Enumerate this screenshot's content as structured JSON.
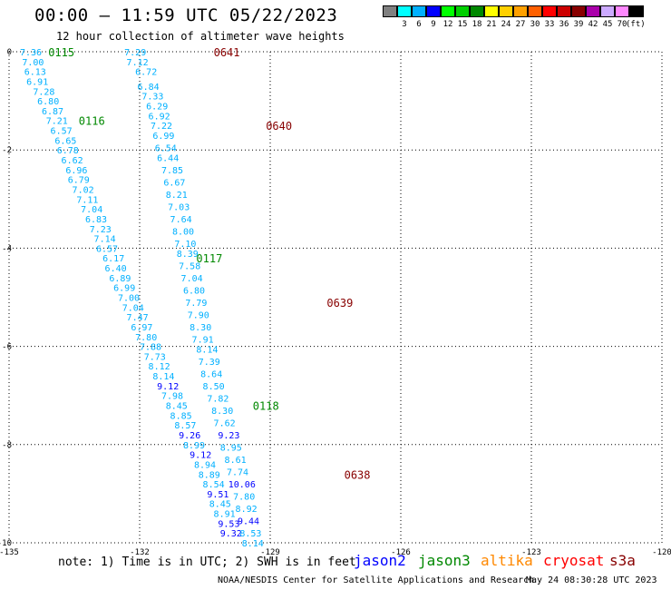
{
  "header": {
    "title": "00:00 – 11:59 UTC 05/22/2023",
    "subtitle": "12 hour collection of altimeter wave heights"
  },
  "colorbar": {
    "colors": [
      "#808080",
      "#00ffff",
      "#00b0ff",
      "#0000ff",
      "#00ff00",
      "#00d000",
      "#008800",
      "#ffff00",
      "#ffd000",
      "#ffa000",
      "#ff6000",
      "#ff0000",
      "#cc0000",
      "#880000",
      "#aa00aa",
      "#ccaaff",
      "#ff88ff",
      "#000000"
    ],
    "labels": [
      "3",
      "6",
      "9",
      "12",
      "15",
      "18",
      "21",
      "24",
      "27",
      "30",
      "33",
      "36",
      "39",
      "42",
      "45",
      "70"
    ],
    "unit": "(ft)"
  },
  "chart_data": {
    "type": "map",
    "x_ticks": [
      "-135",
      "-132",
      "-129",
      "-126",
      "-123",
      "-120"
    ],
    "y_ticks": [
      "0",
      "-2",
      "-4",
      "-6",
      "-8",
      "-10"
    ],
    "xlim": [
      -135,
      -120
    ],
    "ylim": [
      -10,
      0
    ],
    "grid": true,
    "tracks": [
      {
        "id": "0115",
        "lon": -134.1,
        "lat": 0.0
      },
      {
        "id": "0116",
        "lon": -133.4,
        "lat": -1.4
      },
      {
        "id": "0117",
        "lon": -130.7,
        "lat": -4.2
      },
      {
        "id": "0118",
        "lon": -129.4,
        "lat": -7.2
      },
      {
        "id": "0641",
        "lon": -130.3,
        "lat": 0.0
      },
      {
        "id": "0640",
        "lon": -129.1,
        "lat": -1.5
      },
      {
        "id": "0639",
        "lon": -127.7,
        "lat": -5.1
      },
      {
        "id": "0638",
        "lon": -127.3,
        "lat": -8.6
      }
    ],
    "track_colors": {
      "0115": "#008800",
      "0116": "#008800",
      "0117": "#008800",
      "0118": "#008800",
      "0641": "#880000",
      "0640": "#880000",
      "0639": "#880000",
      "0638": "#880000"
    },
    "observations": [
      {
        "lon": -134.5,
        "lat": 0.0,
        "swh": "7.36"
      },
      {
        "lon": -134.45,
        "lat": -0.2,
        "swh": "7.00"
      },
      {
        "lon": -134.4,
        "lat": -0.4,
        "swh": "6.13"
      },
      {
        "lon": -134.35,
        "lat": -0.6,
        "swh": "6.91"
      },
      {
        "lon": -134.2,
        "lat": -0.8,
        "swh": "7.28"
      },
      {
        "lon": -134.1,
        "lat": -1.0,
        "swh": "6.80"
      },
      {
        "lon": -134.0,
        "lat": -1.2,
        "swh": "6.87"
      },
      {
        "lon": -133.9,
        "lat": -1.4,
        "swh": "7.21"
      },
      {
        "lon": -133.8,
        "lat": -1.6,
        "swh": "6.57"
      },
      {
        "lon": -133.7,
        "lat": -1.8,
        "swh": "6.65"
      },
      {
        "lon": -133.65,
        "lat": -2.0,
        "swh": "6.78"
      },
      {
        "lon": -133.55,
        "lat": -2.2,
        "swh": "6.62"
      },
      {
        "lon": -133.45,
        "lat": -2.4,
        "swh": "6.96"
      },
      {
        "lon": -133.4,
        "lat": -2.6,
        "swh": "6.79"
      },
      {
        "lon": -133.3,
        "lat": -2.8,
        "swh": "7.02"
      },
      {
        "lon": -133.2,
        "lat": -3.0,
        "swh": "7.11"
      },
      {
        "lon": -133.1,
        "lat": -3.2,
        "swh": "7.04"
      },
      {
        "lon": -133.0,
        "lat": -3.4,
        "swh": "6.83"
      },
      {
        "lon": -132.9,
        "lat": -3.6,
        "swh": "7.23"
      },
      {
        "lon": -132.8,
        "lat": -3.8,
        "swh": "7.14"
      },
      {
        "lon": -132.75,
        "lat": -4.0,
        "swh": "6.57"
      },
      {
        "lon": -132.6,
        "lat": -4.2,
        "swh": "6.17"
      },
      {
        "lon": -132.55,
        "lat": -4.4,
        "swh": "6.40"
      },
      {
        "lon": -132.45,
        "lat": -4.6,
        "swh": "6.89"
      },
      {
        "lon": -132.35,
        "lat": -4.8,
        "swh": "6.99"
      },
      {
        "lon": -132.25,
        "lat": -5.0,
        "swh": "7.00"
      },
      {
        "lon": -132.15,
        "lat": -5.2,
        "swh": "7.04"
      },
      {
        "lon": -132.05,
        "lat": -5.4,
        "swh": "7.47"
      },
      {
        "lon": -131.95,
        "lat": -5.6,
        "swh": "6.97"
      },
      {
        "lon": -131.85,
        "lat": -5.8,
        "swh": "7.80"
      },
      {
        "lon": -131.75,
        "lat": -6.0,
        "swh": "7.88"
      },
      {
        "lon": -131.65,
        "lat": -6.2,
        "swh": "7.73"
      },
      {
        "lon": -131.55,
        "lat": -6.4,
        "swh": "8.12"
      },
      {
        "lon": -131.45,
        "lat": -6.6,
        "swh": "8.14"
      },
      {
        "lon": -131.35,
        "lat": -6.8,
        "swh": "9.12"
      },
      {
        "lon": -131.25,
        "lat": -7.0,
        "swh": "7.98"
      },
      {
        "lon": -131.15,
        "lat": -7.2,
        "swh": "8.45"
      },
      {
        "lon": -131.05,
        "lat": -7.4,
        "swh": "8.85"
      },
      {
        "lon": -130.95,
        "lat": -7.6,
        "swh": "8.57"
      },
      {
        "lon": -130.85,
        "lat": -7.8,
        "swh": "9.26"
      },
      {
        "lon": -130.75,
        "lat": -8.0,
        "swh": "8.99"
      },
      {
        "lon": -130.6,
        "lat": -8.2,
        "swh": "9.12"
      },
      {
        "lon": -130.5,
        "lat": -8.4,
        "swh": "8.94"
      },
      {
        "lon": -130.4,
        "lat": -8.6,
        "swh": "8.89"
      },
      {
        "lon": -130.3,
        "lat": -8.8,
        "swh": "8.54"
      },
      {
        "lon": -130.2,
        "lat": -9.0,
        "swh": "9.51"
      },
      {
        "lon": -130.15,
        "lat": -9.2,
        "swh": "8.45"
      },
      {
        "lon": -130.05,
        "lat": -9.4,
        "swh": "8.91"
      },
      {
        "lon": -129.95,
        "lat": -9.6,
        "swh": "9.53"
      },
      {
        "lon": -129.9,
        "lat": -9.8,
        "swh": "9.32"
      },
      {
        "lon": -132.1,
        "lat": 0.0,
        "swh": "7.29"
      },
      {
        "lon": -132.05,
        "lat": -0.2,
        "swh": "7.12"
      },
      {
        "lon": -131.85,
        "lat": -0.4,
        "swh": "6.72"
      },
      {
        "lon": -131.8,
        "lat": -0.7,
        "swh": "6.84"
      },
      {
        "lon": -131.7,
        "lat": -0.9,
        "swh": "7.33"
      },
      {
        "lon": -131.6,
        "lat": -1.1,
        "swh": "6.29"
      },
      {
        "lon": -131.55,
        "lat": -1.3,
        "swh": "6.92"
      },
      {
        "lon": -131.5,
        "lat": -1.5,
        "swh": "7.22"
      },
      {
        "lon": -131.45,
        "lat": -1.7,
        "swh": "6.99"
      },
      {
        "lon": -131.4,
        "lat": -1.95,
        "swh": "6.54"
      },
      {
        "lon": -131.35,
        "lat": -2.15,
        "swh": "6.44"
      },
      {
        "lon": -131.25,
        "lat": -2.4,
        "swh": "7.85"
      },
      {
        "lon": -131.2,
        "lat": -2.65,
        "swh": "6.67"
      },
      {
        "lon": -131.15,
        "lat": -2.9,
        "swh": "8.21"
      },
      {
        "lon": -131.1,
        "lat": -3.15,
        "swh": "7.03"
      },
      {
        "lon": -131.05,
        "lat": -3.4,
        "swh": "7.64"
      },
      {
        "lon": -131.0,
        "lat": -3.65,
        "swh": "8.00"
      },
      {
        "lon": -130.95,
        "lat": -3.9,
        "swh": "7.10"
      },
      {
        "lon": -130.9,
        "lat": -4.1,
        "swh": "8.39"
      },
      {
        "lon": -130.85,
        "lat": -4.35,
        "swh": "7.58"
      },
      {
        "lon": -130.8,
        "lat": -4.6,
        "swh": "7.04"
      },
      {
        "lon": -130.75,
        "lat": -4.85,
        "swh": "6.80"
      },
      {
        "lon": -130.7,
        "lat": -5.1,
        "swh": "7.79"
      },
      {
        "lon": -130.65,
        "lat": -5.35,
        "swh": "7.90"
      },
      {
        "lon": -130.6,
        "lat": -5.6,
        "swh": "8.30"
      },
      {
        "lon": -130.55,
        "lat": -5.85,
        "swh": "7.91"
      },
      {
        "lon": -130.45,
        "lat": -6.05,
        "swh": "8.14"
      },
      {
        "lon": -130.4,
        "lat": -6.3,
        "swh": "7.39"
      },
      {
        "lon": -130.35,
        "lat": -6.55,
        "swh": "8.64"
      },
      {
        "lon": -130.3,
        "lat": -6.8,
        "swh": "8.50"
      },
      {
        "lon": -130.2,
        "lat": -7.05,
        "swh": "7.82"
      },
      {
        "lon": -130.1,
        "lat": -7.3,
        "swh": "8.30"
      },
      {
        "lon": -130.05,
        "lat": -7.55,
        "swh": "7.62"
      },
      {
        "lon": -129.95,
        "lat": -7.8,
        "swh": "9.23"
      },
      {
        "lon": -129.9,
        "lat": -8.05,
        "swh": "8.95"
      },
      {
        "lon": -129.8,
        "lat": -8.3,
        "swh": "8.61"
      },
      {
        "lon": -129.75,
        "lat": -8.55,
        "swh": "7.74"
      },
      {
        "lon": -129.65,
        "lat": -8.8,
        "swh": "10.06"
      },
      {
        "lon": -129.6,
        "lat": -9.05,
        "swh": "7.80"
      },
      {
        "lon": -129.55,
        "lat": -9.3,
        "swh": "8.92"
      },
      {
        "lon": -129.5,
        "lat": -9.55,
        "swh": "9.44"
      },
      {
        "lon": -129.45,
        "lat": -9.8,
        "swh": "8.53"
      },
      {
        "lon": -129.4,
        "lat": -10.0,
        "swh": "8.14"
      }
    ]
  },
  "note": "note: 1) Time is in UTC; 2) SWH is in feet",
  "legend": [
    {
      "name": "jason2",
      "color": "#0000ff"
    },
    {
      "name": "jason3",
      "color": "#008800"
    },
    {
      "name": "altika",
      "color": "#ff8800"
    },
    {
      "name": "cryosat",
      "color": "#ff0000"
    },
    {
      "name": "s3a",
      "color": "#880000"
    }
  ],
  "footer": {
    "credit": "NOAA/NESDIS Center for Satellite Applications and Research",
    "timestamp": "May 24 08:30:28 UTC 2023"
  }
}
